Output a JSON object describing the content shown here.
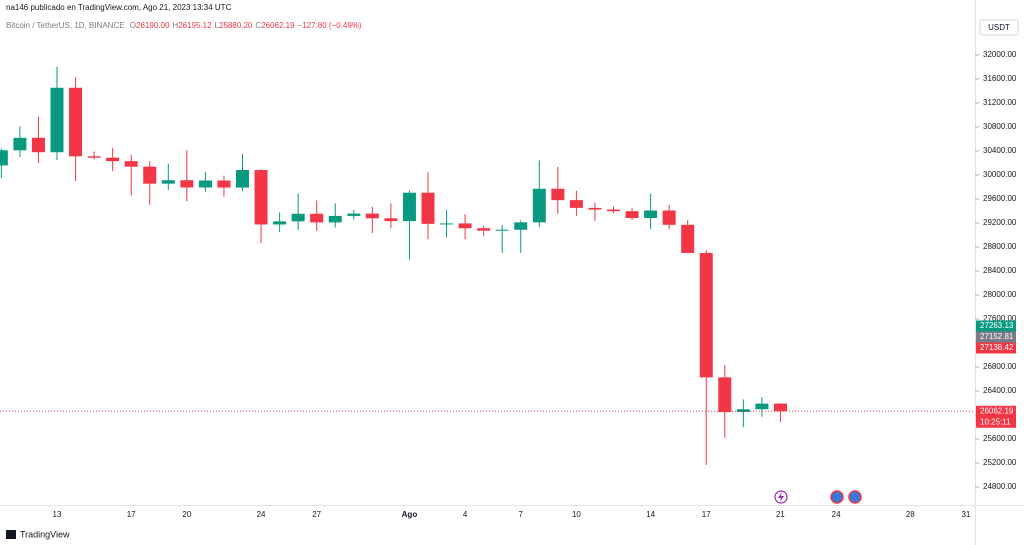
{
  "header": {
    "publisher": "na146 publicado en TradingView.com, Ago 21, 2023 13:34 UTC",
    "symbol": "Bitcoin / TetherUS, 1D, BINANCE",
    "ohlc": [
      {
        "key": "O",
        "value": "26190.00"
      },
      {
        "key": "H",
        "value": "26195.12"
      },
      {
        "key": "L",
        "value": "25880.20"
      },
      {
        "key": "C",
        "value": "26062.19"
      }
    ],
    "change": "−127.80 (−0.49%)",
    "currency": "USDT",
    "brand": "TradingView"
  },
  "chart_data": {
    "type": "candlestick",
    "categories": [
      null,
      null,
      null,
      "13",
      null,
      null,
      null,
      "17",
      null,
      null,
      "20",
      null,
      null,
      null,
      "24",
      null,
      null,
      "27",
      null,
      null,
      null,
      null,
      "Ago",
      null,
      null,
      "4",
      null,
      null,
      "7",
      null,
      null,
      "10",
      null,
      null,
      null,
      "14",
      null,
      null,
      "17",
      null,
      null,
      null,
      "21",
      null,
      null,
      "24",
      null,
      null,
      null,
      "28",
      null,
      null,
      "31"
    ],
    "open": [
      30160,
      30412,
      30620,
      30380,
      31454,
      30312,
      30289,
      30231,
      30139,
      29856,
      29913,
      29792,
      29908,
      29791,
      30083,
      29176,
      29228,
      29354,
      29210,
      29318,
      29357,
      29279,
      29232,
      29705,
      29186,
      29193,
      29113,
      29072,
      29088,
      29211,
      29771,
      29581,
      29452,
      29424,
      29397,
      29283,
      29408,
      29170,
      28701,
      26627,
      26049,
      26096,
      26190.0,
      null,
      null,
      null,
      null,
      null,
      null,
      null,
      null,
      null,
      null
    ],
    "high": [
      30445,
      30812,
      30971,
      31804,
      31630,
      30390,
      30454,
      30336,
      30233,
      30189,
      30417,
      30055,
      29990,
      30350,
      30099,
      29376,
      29690,
      29575,
      29529,
      29420,
      29470,
      29528,
      29744,
      30047,
      29419,
      29350,
      29152,
      29170,
      29244,
      30244,
      30136,
      29738,
      29541,
      29474,
      29456,
      29688,
      29500,
      29250,
      28745,
      26833,
      26260,
      26300,
      26195.12,
      null,
      null,
      null,
      null,
      null,
      null,
      null,
      null,
      null,
      null
    ],
    "low": [
      29950,
      30300,
      30200,
      30250,
      29900,
      30257,
      30066,
      29658,
      29500,
      29750,
      29562,
      29720,
      29640,
      29730,
      28862,
      29047,
      29083,
      29069,
      29123,
      29256,
      29033,
      29111,
      28585,
      28927,
      28959,
      28928,
      28980,
      28701,
      28701,
      29132,
      29355,
      29320,
      29234,
      29358,
      29250,
      29100,
      29100,
      28701,
      25166,
      25620,
      25800,
      25970,
      25880.2,
      null,
      null,
      null,
      null,
      null,
      null,
      null,
      null,
      null,
      null
    ],
    "close": [
      30412,
      30620,
      30380,
      31454,
      30312,
      30289,
      30231,
      30139,
      29856,
      29913,
      29792,
      29908,
      29791,
      30083,
      29176,
      29228,
      29354,
      29210,
      29318,
      29357,
      29279,
      29232,
      29705,
      29186,
      29193,
      29113,
      29072,
      29088,
      29211,
      29771,
      29581,
      29452,
      29424,
      29397,
      29283,
      29408,
      29170,
      28701,
      26627,
      26049,
      26096,
      26190,
      26062.19,
      null,
      null,
      null,
      null,
      null,
      null,
      null,
      null,
      null,
      null
    ],
    "up_color": "#089981",
    "down_color": "#f23645",
    "ylim": [
      24500,
      32917
    ],
    "yticks": [
      {
        "value": 24800,
        "label": "24800.00"
      },
      {
        "value": 25200,
        "label": "25200.00"
      },
      {
        "value": 25600,
        "label": "25600.00"
      },
      {
        "value": 26000,
        "label": "26000.00"
      },
      {
        "value": 26400,
        "label": "26400.00"
      },
      {
        "value": 26800,
        "label": "26800.00"
      },
      {
        "value": 27200,
        "label": "27200.00"
      },
      {
        "value": 27600,
        "label": "27600.00"
      },
      {
        "value": 28000,
        "label": "28000.00"
      },
      {
        "value": 28400,
        "label": "28400.00"
      },
      {
        "value": 28800,
        "label": "28800.00"
      },
      {
        "value": 29200,
        "label": "29200.00"
      },
      {
        "value": 29600,
        "label": "29600.00"
      },
      {
        "value": 30000,
        "label": "30000.00"
      },
      {
        "value": 30400,
        "label": "30400.00"
      },
      {
        "value": 30800,
        "label": "30800.00"
      },
      {
        "value": 31200,
        "label": "31200.00"
      },
      {
        "value": 31600,
        "label": "31600.00"
      },
      {
        "value": 32000,
        "label": "32000.00"
      }
    ],
    "grid": false,
    "price_labels": [
      {
        "value": 27263.13,
        "color": "#089981"
      },
      {
        "value": 27152.81,
        "color": "#787b86"
      },
      {
        "value": 27138.42,
        "color": "#f23645"
      },
      {
        "value": 26062.19,
        "color": "#f23645"
      }
    ],
    "countdown": "10:25:11"
  }
}
